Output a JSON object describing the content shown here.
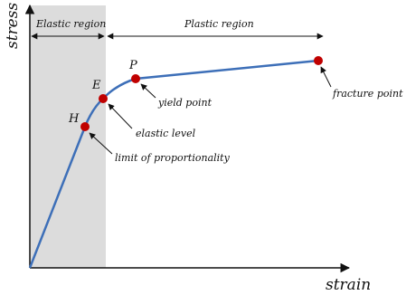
{
  "axes": {
    "y_title": "stress",
    "x_title": "strain"
  },
  "regions": {
    "elastic": "Elastic region",
    "plastic": "Plastic region"
  },
  "points": [
    {
      "label": "H",
      "note": "limit of proportionality"
    },
    {
      "label": "E",
      "note": "elastic level"
    },
    {
      "label": "P",
      "note": "yield point"
    },
    {
      "note": "fracture point"
    }
  ]
}
